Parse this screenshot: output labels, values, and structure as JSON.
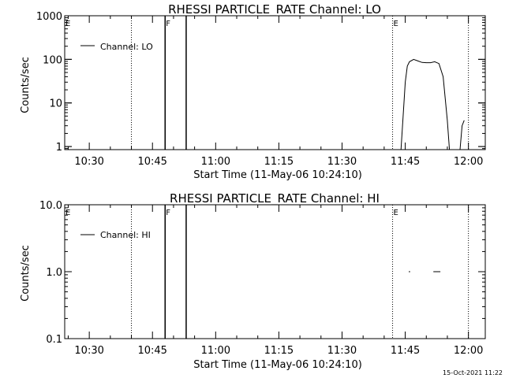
{
  "chart_data": [
    {
      "type": "line",
      "title": "RHESSI PARTICLE_RATE Channel: LO",
      "xlabel": "Start Time (11-May-06 10:24:10)",
      "ylabel": "Counts/sec",
      "y_scale": "log",
      "ylim": [
        0.85,
        1000
      ],
      "y_ticks": [
        {
          "v": 1,
          "label": "1"
        },
        {
          "v": 10,
          "label": "10"
        },
        {
          "v": 100,
          "label": "100"
        },
        {
          "v": 1000,
          "label": "1000"
        }
      ],
      "xlim": [
        "10:24:10",
        "12:04:00"
      ],
      "x_ticks": [
        "10:30",
        "10:45",
        "11:00",
        "11:15",
        "11:30",
        "11:45",
        "12:00"
      ],
      "legend": {
        "position": "top-left",
        "label": "Channel: LO"
      },
      "grid": false,
      "markers": [
        {
          "time": "10:40",
          "style": "dotted",
          "label": ""
        },
        {
          "time": "10:48",
          "style": "solid",
          "label": "F"
        },
        {
          "time": "10:53",
          "style": "solid",
          "label": ""
        },
        {
          "time": "11:42",
          "style": "dotted",
          "label": "E"
        },
        {
          "time": "12:00",
          "style": "dotted",
          "label": ""
        }
      ],
      "corner_mark": "E",
      "series": [
        {
          "name": "Channel: LO",
          "segments": [
            [
              [
                "11:44:00",
                0.85
              ],
              [
                "11:44:30",
                5
              ],
              [
                "11:45:00",
                30
              ],
              [
                "11:45:30",
                70
              ],
              [
                "11:46:00",
                88
              ],
              [
                "11:47:00",
                100
              ],
              [
                "11:48:00",
                92
              ],
              [
                "11:49:00",
                85
              ],
              [
                "11:50:00",
                84
              ],
              [
                "11:51:00",
                84
              ],
              [
                "11:52:00",
                88
              ],
              [
                "11:53:00",
                80
              ],
              [
                "11:54:00",
                40
              ],
              [
                "11:55:00",
                4
              ],
              [
                "11:55:30",
                0.85
              ]
            ],
            [
              [
                "11:58:00",
                0.85
              ],
              [
                "11:58:30",
                3
              ],
              [
                "11:59:00",
                4
              ]
            ]
          ]
        }
      ]
    },
    {
      "type": "line",
      "title": "RHESSI PARTICLE_RATE Channel: HI",
      "xlabel": "Start Time (11-May-06 10:24:10)",
      "ylabel": "Counts/sec",
      "y_scale": "log",
      "ylim": [
        0.1,
        10
      ],
      "y_ticks": [
        {
          "v": 0.1,
          "label": "0.1"
        },
        {
          "v": 1,
          "label": "1.0"
        },
        {
          "v": 10,
          "label": "10.0"
        }
      ],
      "xlim": [
        "10:24:10",
        "12:04:00"
      ],
      "x_ticks": [
        "10:30",
        "10:45",
        "11:00",
        "11:15",
        "11:30",
        "11:45",
        "12:00"
      ],
      "legend": {
        "position": "top-left",
        "label": "Channel: HI"
      },
      "grid": false,
      "markers": [
        {
          "time": "10:40",
          "style": "dotted",
          "label": ""
        },
        {
          "time": "10:48",
          "style": "solid",
          "label": "F"
        },
        {
          "time": "10:53",
          "style": "solid",
          "label": ""
        },
        {
          "time": "11:42",
          "style": "dotted",
          "label": "E"
        },
        {
          "time": "12:00",
          "style": "dotted",
          "label": ""
        }
      ],
      "corner_mark": "E",
      "series": [
        {
          "name": "Channel: HI",
          "segments": [
            [
              [
                "11:45:50",
                1.0
              ],
              [
                "11:46:10",
                1.0
              ]
            ],
            [
              [
                "11:51:40",
                1.0
              ],
              [
                "11:53:20",
                1.0
              ]
            ]
          ]
        }
      ]
    }
  ],
  "timestamp": "15-Oct-2021 11:22"
}
